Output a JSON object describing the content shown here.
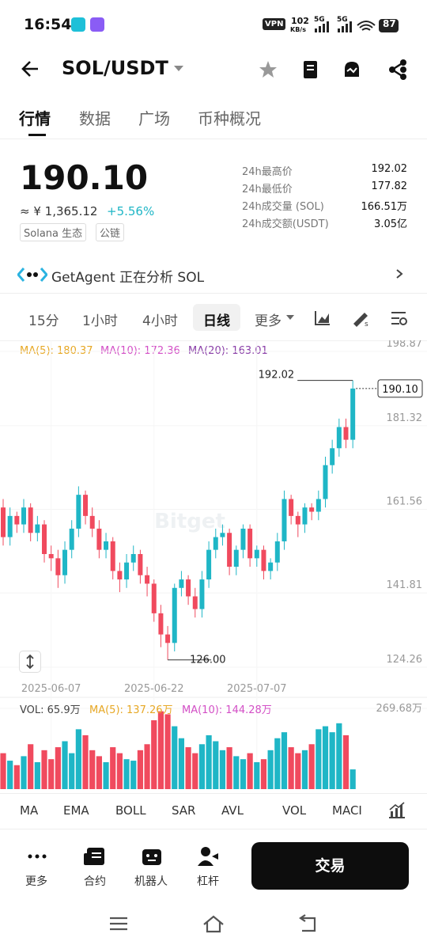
{
  "status_bar": {
    "time": "16:54",
    "vpn": "VPN",
    "speed": "102",
    "speed_unit": "KB/s",
    "net1": "5G",
    "net2": "5G",
    "battery": "87"
  },
  "header": {
    "pair": "SOL/USDT"
  },
  "tabs": [
    "行情",
    "数据",
    "广场",
    "币种概况"
  ],
  "price": {
    "last": "190.10",
    "cny": "≈ ¥ 1,365.12",
    "change": "+5.56%",
    "tags": [
      "Solana 生态",
      "公链"
    ]
  },
  "stats": [
    {
      "label": "24h最高价",
      "value": "192.02"
    },
    {
      "label": "24h最低价",
      "value": "177.82"
    },
    {
      "label": "24h成交量 (SOL)",
      "value": "166.51万"
    },
    {
      "label": "24h成交额(USDT)",
      "value": "3.05亿"
    }
  ],
  "agent": "GetAgent 正在分析 SOL",
  "intervals": [
    "15分",
    "1小时",
    "4小时",
    "日线",
    "更多"
  ],
  "ma_legend": [
    "MA(5): 180.37",
    "MA(10): 172.36",
    "MA(20): 163.01"
  ],
  "vol_legend": [
    "VOL: 65.9万",
    "MA(5): 137.26万",
    "MA(10): 144.28万"
  ],
  "chart_data": {
    "type": "candlestick",
    "watermark": "Bitget",
    "x": [
      null,
      null,
      null,
      null,
      null,
      null,
      null,
      "2025-06-07",
      null,
      null,
      null,
      null,
      null,
      null,
      null,
      null,
      null,
      null,
      null,
      null,
      null,
      null,
      "2025-06-22",
      null,
      null,
      null,
      null,
      null,
      null,
      null,
      null,
      null,
      null,
      null,
      null,
      null,
      null,
      "2025-07-07",
      null,
      null,
      null,
      null,
      null,
      null,
      null,
      null,
      null,
      null,
      null,
      null,
      null,
      null
    ],
    "open": [
      162,
      155,
      160,
      158,
      162,
      156,
      158,
      151,
      150,
      146,
      152,
      157,
      165,
      160,
      157,
      152,
      154,
      147,
      145,
      149,
      151,
      146,
      144,
      137,
      132,
      130,
      143,
      145,
      141,
      138,
      145,
      152,
      155,
      156,
      148,
      152,
      157,
      150,
      152,
      147,
      149,
      154,
      164,
      160,
      158,
      162,
      161,
      164,
      172,
      176,
      181,
      178
    ],
    "high": [
      164,
      162,
      161,
      164,
      163,
      160,
      159,
      153,
      152,
      154,
      159,
      167,
      166,
      162,
      159,
      156,
      155,
      149,
      151,
      153,
      152,
      148,
      145,
      139,
      134,
      144,
      147,
      146,
      143,
      147,
      154,
      157,
      158,
      157,
      153,
      158,
      158,
      153,
      153,
      150,
      156,
      166,
      165,
      161,
      163,
      163,
      166,
      174,
      178,
      183,
      183,
      192.02
    ],
    "low": [
      153,
      153,
      156,
      156,
      154,
      154,
      149,
      147,
      143,
      144,
      150,
      155,
      158,
      155,
      150,
      150,
      145,
      142,
      143,
      147,
      144,
      141,
      135,
      129,
      126,
      128,
      141,
      139,
      136,
      136,
      143,
      150,
      153,
      146,
      146,
      150,
      148,
      148,
      145,
      145,
      147,
      152,
      158,
      155,
      156,
      159,
      159,
      162,
      170,
      174,
      176,
      176
    ],
    "close": [
      155,
      160,
      158,
      162,
      156,
      158,
      151,
      150,
      146,
      152,
      157,
      165,
      160,
      157,
      152,
      154,
      147,
      145,
      149,
      151,
      146,
      144,
      137,
      132,
      130,
      143,
      145,
      141,
      138,
      145,
      152,
      155,
      156,
      148,
      152,
      157,
      150,
      152,
      147,
      149,
      154,
      164,
      160,
      158,
      162,
      161,
      164,
      172,
      176,
      181,
      178,
      190.1
    ],
    "up_color": "#1fb6c6",
    "down_color": "#f04a5e",
    "ylim": [
      124.26,
      198.87
    ],
    "yticks": [
      198.87,
      181.32,
      161.56,
      141.81,
      124.26
    ],
    "grid": true,
    "annotations": {
      "high": "192.02",
      "low": "126.00",
      "last": "190.10"
    },
    "volume": [
      120,
      95,
      80,
      110,
      150,
      90,
      130,
      100,
      140,
      160,
      120,
      200,
      180,
      130,
      110,
      90,
      140,
      120,
      100,
      95,
      130,
      150,
      230,
      260,
      250,
      210,
      170,
      140,
      120,
      150,
      180,
      160,
      130,
      140,
      110,
      100,
      120,
      90,
      100,
      130,
      170,
      190,
      140,
      120,
      130,
      150,
      200,
      210,
      190,
      220,
      180,
      65.9
    ],
    "vlim": [
      0,
      269.68
    ],
    "vticks": [
      {
        "value": 269.68,
        "label": "269.68万"
      }
    ]
  },
  "indicators": [
    "MA",
    "EMA",
    "BOLL",
    "SAR",
    "AVL",
    "VOL",
    "MACI"
  ],
  "bottom": {
    "actions": [
      "更多",
      "合约",
      "机器人",
      "杠杆"
    ],
    "trade": "交易"
  }
}
